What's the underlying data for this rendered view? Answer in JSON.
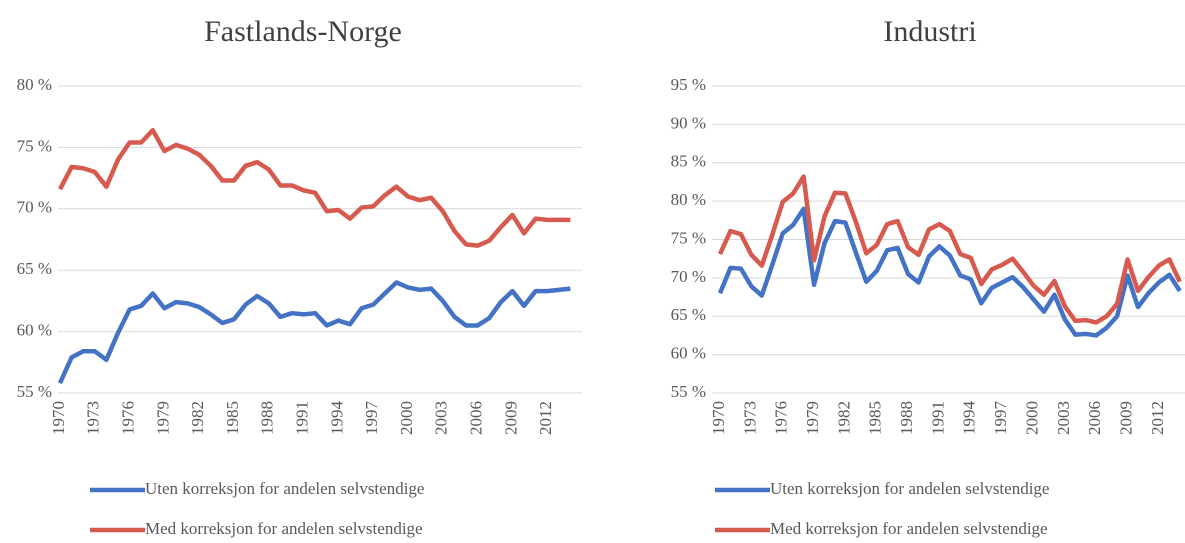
{
  "chart_data": [
    {
      "type": "line",
      "title": "Fastlands-Norge",
      "categories": [
        "1970",
        null,
        null,
        "1973",
        null,
        null,
        "1976",
        null,
        null,
        "1979",
        null,
        null,
        "1982",
        null,
        null,
        "1985",
        null,
        null,
        "1988",
        null,
        null,
        "1991",
        null,
        null,
        "1994",
        null,
        null,
        "1997",
        null,
        null,
        "2000",
        null,
        null,
        "2003",
        null,
        null,
        "2006",
        null,
        null,
        "2009",
        null,
        null,
        "2012",
        null,
        null
      ],
      "series": [
        {
          "name": "Uten korreksjon for andelen selvstendige",
          "color": "#4472c4",
          "values": [
            55.8,
            57.9,
            58.4,
            58.4,
            57.7,
            59.9,
            61.8,
            62.1,
            63.1,
            61.9,
            62.4,
            62.3,
            62.0,
            61.4,
            60.7,
            61.0,
            62.2,
            62.9,
            62.3,
            61.2,
            61.5,
            61.4,
            61.5,
            60.5,
            60.9,
            60.6,
            61.9,
            62.2,
            63.1,
            64.0,
            63.6,
            63.4,
            63.5,
            62.5,
            61.2,
            60.5,
            60.5,
            61.1,
            62.4,
            63.3,
            62.1,
            63.3,
            63.3,
            63.4,
            63.5
          ]
        },
        {
          "name": "Med korreksjon for andelen selvstendige",
          "color": "#d65a4e",
          "values": [
            71.6,
            73.4,
            73.3,
            73.0,
            71.8,
            74.0,
            75.4,
            75.4,
            76.4,
            74.7,
            75.2,
            74.9,
            74.4,
            73.5,
            72.3,
            72.3,
            73.5,
            73.8,
            73.2,
            71.9,
            71.9,
            71.5,
            71.3,
            69.8,
            69.9,
            69.2,
            70.1,
            70.2,
            71.1,
            71.8,
            71.0,
            70.7,
            70.9,
            69.8,
            68.2,
            67.1,
            67.0,
            67.4,
            68.5,
            69.5,
            68.0,
            69.2,
            69.1,
            69.1,
            69.1
          ]
        }
      ],
      "ylim": [
        55,
        80
      ],
      "yticks": [
        {
          "value": 55,
          "label": "55 %"
        },
        {
          "value": 60,
          "label": "60 %"
        },
        {
          "value": 65,
          "label": "65 %"
        },
        {
          "value": 70,
          "label": "70 %"
        },
        {
          "value": 75,
          "label": "75 %"
        },
        {
          "value": 80,
          "label": "80 %"
        }
      ],
      "grid": true
    },
    {
      "type": "line",
      "title": "Industri",
      "categories": [
        "1970",
        null,
        null,
        "1973",
        null,
        null,
        "1976",
        null,
        null,
        "1979",
        null,
        null,
        "1982",
        null,
        null,
        "1985",
        null,
        null,
        "1988",
        null,
        null,
        "1991",
        null,
        null,
        "1994",
        null,
        null,
        "1997",
        null,
        null,
        "2000",
        null,
        null,
        "2003",
        null,
        null,
        "2006",
        null,
        null,
        "2009",
        null,
        null,
        "2012",
        null,
        null
      ],
      "series": [
        {
          "name": "Uten korreksjon for andelen selvstendige",
          "color": "#4472c4",
          "values": [
            68.0,
            71.3,
            71.2,
            68.9,
            67.7,
            71.7,
            75.8,
            76.9,
            79.0,
            69.1,
            74.5,
            77.4,
            77.2,
            73.3,
            69.5,
            70.9,
            73.6,
            73.9,
            70.5,
            69.4,
            72.8,
            74.1,
            72.9,
            70.3,
            69.8,
            66.7,
            68.7,
            69.4,
            70.1,
            68.8,
            67.2,
            65.6,
            67.8,
            64.6,
            62.6,
            62.7,
            62.5,
            63.5,
            65.0,
            70.3,
            66.2,
            68.0,
            69.4,
            70.4,
            68.3
          ]
        },
        {
          "name": "Med korreksjon for andelen selvstendige",
          "color": "#d65a4e",
          "values": [
            73.1,
            76.1,
            75.7,
            73.0,
            71.6,
            75.6,
            79.9,
            81.0,
            83.2,
            72.3,
            78.0,
            81.1,
            81.0,
            77.3,
            73.2,
            74.3,
            77.0,
            77.4,
            74.0,
            73.0,
            76.3,
            77.0,
            76.1,
            73.1,
            72.6,
            69.2,
            71.1,
            71.7,
            72.5,
            70.8,
            69.0,
            67.8,
            69.6,
            66.3,
            64.4,
            64.5,
            64.2,
            65.0,
            66.6,
            72.4,
            68.3,
            70.1,
            71.6,
            72.4,
            69.5
          ]
        }
      ],
      "ylim": [
        55,
        95
      ],
      "yticks": [
        {
          "value": 55,
          "label": "55 %"
        },
        {
          "value": 60,
          "label": "60 %"
        },
        {
          "value": 65,
          "label": "65 %"
        },
        {
          "value": 70,
          "label": "70 %"
        },
        {
          "value": 75,
          "label": "75 %"
        },
        {
          "value": 80,
          "label": "80 %"
        },
        {
          "value": 85,
          "label": "85 %"
        },
        {
          "value": 90,
          "label": "90 %"
        },
        {
          "value": 95,
          "label": "95 %"
        }
      ],
      "grid": true
    }
  ]
}
